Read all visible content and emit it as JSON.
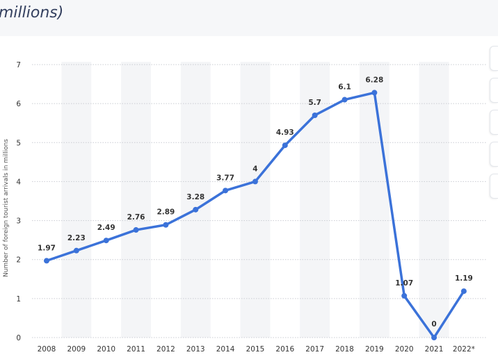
{
  "header": {
    "title": "millions)"
  },
  "side_tabs": {
    "icons": [
      "panel-tab-icon",
      "panel-tab-icon",
      "panel-tab-icon",
      "panel-tab-icon",
      "panel-tab-icon"
    ]
  },
  "chart_data": {
    "type": "line",
    "title": "",
    "xlabel": "",
    "ylabel": "Number of foreign tourist arrivals in millions",
    "ylim": [
      0,
      7
    ],
    "yticks": [
      0,
      1,
      2,
      3,
      4,
      5,
      6,
      7
    ],
    "grid": true,
    "categories": [
      "2008",
      "2009",
      "2010",
      "2011",
      "2012",
      "2013",
      "2014",
      "2015",
      "2016",
      "2017",
      "2018",
      "2019",
      "2020",
      "2021",
      "2022*"
    ],
    "series": [
      {
        "values": [
          1.97,
          2.23,
          2.49,
          2.76,
          2.89,
          3.28,
          3.77,
          4,
          4.93,
          5.7,
          6.1,
          6.28,
          1.07,
          0,
          1.19
        ],
        "labels": [
          "1.97",
          "2.23",
          "2.49",
          "2.76",
          "2.89",
          "3.28",
          "3.77",
          "4",
          "4.93",
          "5.7",
          "6.1",
          "6.28",
          "1.07",
          "0",
          "1.19"
        ],
        "color": "#3b72d9"
      }
    ],
    "colors": {
      "line": "#3b72d9",
      "band": "#f4f5f7",
      "grid": "#c9ccd2"
    }
  }
}
